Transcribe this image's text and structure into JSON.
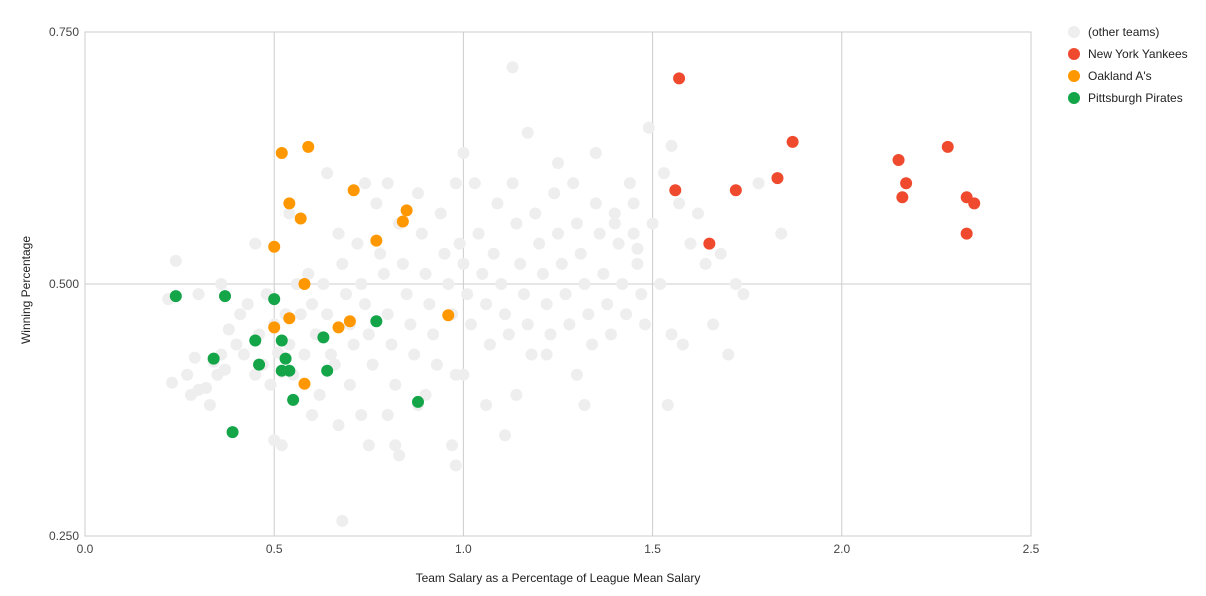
{
  "chart_data": {
    "type": "scatter",
    "title": "",
    "xlabel": "Team Salary as a Percentage of League Mean Salary",
    "ylabel": "Winning Percentage",
    "xlim": [
      0,
      2.5
    ],
    "ylim": [
      0.25,
      0.75
    ],
    "xticks": [
      "0.0",
      "0.5",
      "1.0",
      "1.5",
      "2.0",
      "2.5"
    ],
    "yticks": [
      "0.250",
      "0.500",
      "0.750"
    ],
    "grid": true,
    "legend_position": "right",
    "series": [
      {
        "name": "(other teams)",
        "color": "#eeeeee",
        "points": [
          [
            0.22,
            0.485
          ],
          [
            0.24,
            0.523
          ],
          [
            0.23,
            0.402
          ],
          [
            0.27,
            0.41
          ],
          [
            0.28,
            0.39
          ],
          [
            0.29,
            0.427
          ],
          [
            0.3,
            0.395
          ],
          [
            0.32,
            0.397
          ],
          [
            0.33,
            0.38
          ],
          [
            0.34,
            0.423
          ],
          [
            0.35,
            0.41
          ],
          [
            0.36,
            0.43
          ],
          [
            0.37,
            0.415
          ],
          [
            0.38,
            0.455
          ],
          [
            0.4,
            0.44
          ],
          [
            0.41,
            0.47
          ],
          [
            0.42,
            0.43
          ],
          [
            0.43,
            0.48
          ],
          [
            0.45,
            0.41
          ],
          [
            0.46,
            0.45
          ],
          [
            0.47,
            0.42
          ],
          [
            0.48,
            0.49
          ],
          [
            0.49,
            0.4
          ],
          [
            0.5,
            0.46
          ],
          [
            0.51,
            0.432
          ],
          [
            0.52,
            0.413
          ],
          [
            0.53,
            0.47
          ],
          [
            0.54,
            0.44
          ],
          [
            0.55,
            0.41
          ],
          [
            0.56,
            0.5
          ],
          [
            0.57,
            0.47
          ],
          [
            0.58,
            0.43
          ],
          [
            0.59,
            0.51
          ],
          [
            0.6,
            0.48
          ],
          [
            0.61,
            0.45
          ],
          [
            0.62,
            0.39
          ],
          [
            0.63,
            0.5
          ],
          [
            0.64,
            0.47
          ],
          [
            0.65,
            0.43
          ],
          [
            0.66,
            0.42
          ],
          [
            0.67,
            0.55
          ],
          [
            0.68,
            0.52
          ],
          [
            0.69,
            0.49
          ],
          [
            0.7,
            0.46
          ],
          [
            0.71,
            0.44
          ],
          [
            0.72,
            0.54
          ],
          [
            0.73,
            0.5
          ],
          [
            0.74,
            0.48
          ],
          [
            0.75,
            0.45
          ],
          [
            0.76,
            0.42
          ],
          [
            0.77,
            0.58
          ],
          [
            0.78,
            0.53
          ],
          [
            0.79,
            0.51
          ],
          [
            0.8,
            0.47
          ],
          [
            0.81,
            0.44
          ],
          [
            0.82,
            0.4
          ],
          [
            0.83,
            0.56
          ],
          [
            0.84,
            0.52
          ],
          [
            0.85,
            0.49
          ],
          [
            0.86,
            0.46
          ],
          [
            0.87,
            0.43
          ],
          [
            0.88,
            0.59
          ],
          [
            0.89,
            0.55
          ],
          [
            0.9,
            0.51
          ],
          [
            0.91,
            0.48
          ],
          [
            0.92,
            0.45
          ],
          [
            0.93,
            0.42
          ],
          [
            0.94,
            0.57
          ],
          [
            0.95,
            0.53
          ],
          [
            0.96,
            0.5
          ],
          [
            0.97,
            0.47
          ],
          [
            0.98,
            0.41
          ],
          [
            0.99,
            0.54
          ],
          [
            1.0,
            0.52
          ],
          [
            1.01,
            0.49
          ],
          [
            1.02,
            0.46
          ],
          [
            1.03,
            0.6
          ],
          [
            1.04,
            0.55
          ],
          [
            1.05,
            0.51
          ],
          [
            1.06,
            0.48
          ],
          [
            1.07,
            0.44
          ],
          [
            1.08,
            0.53
          ],
          [
            1.09,
            0.58
          ],
          [
            1.1,
            0.5
          ],
          [
            1.11,
            0.47
          ],
          [
            1.12,
            0.45
          ],
          [
            1.13,
            0.6
          ],
          [
            1.14,
            0.56
          ],
          [
            1.15,
            0.52
          ],
          [
            1.16,
            0.49
          ],
          [
            1.17,
            0.46
          ],
          [
            1.18,
            0.43
          ],
          [
            1.19,
            0.57
          ],
          [
            1.2,
            0.54
          ],
          [
            1.21,
            0.51
          ],
          [
            1.22,
            0.48
          ],
          [
            1.23,
            0.45
          ],
          [
            1.24,
            0.59
          ],
          [
            1.25,
            0.55
          ],
          [
            1.26,
            0.52
          ],
          [
            1.27,
            0.49
          ],
          [
            1.28,
            0.46
          ],
          [
            1.29,
            0.6
          ],
          [
            1.3,
            0.56
          ],
          [
            1.31,
            0.53
          ],
          [
            1.32,
            0.5
          ],
          [
            1.33,
            0.47
          ],
          [
            1.34,
            0.44
          ],
          [
            1.35,
            0.58
          ],
          [
            1.36,
            0.55
          ],
          [
            1.37,
            0.51
          ],
          [
            1.38,
            0.48
          ],
          [
            1.39,
            0.45
          ],
          [
            1.4,
            0.57
          ],
          [
            1.41,
            0.54
          ],
          [
            1.42,
            0.5
          ],
          [
            1.43,
            0.47
          ],
          [
            1.44,
            0.6
          ],
          [
            1.45,
            0.55
          ],
          [
            1.46,
            0.52
          ],
          [
            1.47,
            0.49
          ],
          [
            1.48,
            0.46
          ],
          [
            1.5,
            0.56
          ],
          [
            1.52,
            0.5
          ],
          [
            1.53,
            0.61
          ],
          [
            1.55,
            0.45
          ],
          [
            1.57,
            0.58
          ],
          [
            1.58,
            0.44
          ],
          [
            1.6,
            0.54
          ],
          [
            1.62,
            0.57
          ],
          [
            1.64,
            0.52
          ],
          [
            1.66,
            0.46
          ],
          [
            1.68,
            0.53
          ],
          [
            1.7,
            0.43
          ],
          [
            1.72,
            0.5
          ],
          [
            1.74,
            0.49
          ],
          [
            1.78,
            0.6
          ],
          [
            1.84,
            0.55
          ],
          [
            0.5,
            0.345
          ],
          [
            0.52,
            0.34
          ],
          [
            0.6,
            0.37
          ],
          [
            0.67,
            0.36
          ],
          [
            0.7,
            0.4
          ],
          [
            0.73,
            0.37
          ],
          [
            0.75,
            0.34
          ],
          [
            0.8,
            0.37
          ],
          [
            0.82,
            0.34
          ],
          [
            0.83,
            0.33
          ],
          [
            0.88,
            0.38
          ],
          [
            0.9,
            0.39
          ],
          [
            0.97,
            0.34
          ],
          [
            0.98,
            0.32
          ],
          [
            1.0,
            0.41
          ],
          [
            1.06,
            0.38
          ],
          [
            1.11,
            0.35
          ],
          [
            1.14,
            0.39
          ],
          [
            1.22,
            0.43
          ],
          [
            1.3,
            0.41
          ],
          [
            1.32,
            0.38
          ],
          [
            1.54,
            0.38
          ],
          [
            1.13,
            0.715
          ],
          [
            1.17,
            0.65
          ],
          [
            1.49,
            0.655
          ],
          [
            1.55,
            0.637
          ],
          [
            1.45,
            0.58
          ],
          [
            1.35,
            0.63
          ],
          [
            1.25,
            0.62
          ],
          [
            1.0,
            0.63
          ],
          [
            0.98,
            0.6
          ],
          [
            0.8,
            0.6
          ],
          [
            0.74,
            0.6
          ],
          [
            0.64,
            0.61
          ],
          [
            0.54,
            0.57
          ],
          [
            0.45,
            0.54
          ],
          [
            0.36,
            0.5
          ],
          [
            0.3,
            0.49
          ],
          [
            0.68,
            0.265
          ],
          [
            1.4,
            0.56
          ],
          [
            1.46,
            0.535
          ]
        ]
      },
      {
        "name": "New York Yankees",
        "color": "#ef4a2e",
        "points": [
          [
            1.57,
            0.704
          ],
          [
            1.56,
            0.593
          ],
          [
            1.65,
            0.54
          ],
          [
            1.72,
            0.593
          ],
          [
            1.83,
            0.605
          ],
          [
            1.87,
            0.641
          ],
          [
            2.15,
            0.623
          ],
          [
            2.17,
            0.6
          ],
          [
            2.16,
            0.586
          ],
          [
            2.28,
            0.636
          ],
          [
            2.33,
            0.586
          ],
          [
            2.35,
            0.58
          ],
          [
            2.33,
            0.55
          ]
        ]
      },
      {
        "name": "Oakland A's",
        "color": "#ff9800",
        "points": [
          [
            0.52,
            0.63
          ],
          [
            0.59,
            0.636
          ],
          [
            0.54,
            0.58
          ],
          [
            0.57,
            0.565
          ],
          [
            0.5,
            0.537
          ],
          [
            0.71,
            0.593
          ],
          [
            0.84,
            0.562
          ],
          [
            0.85,
            0.573
          ],
          [
            0.77,
            0.543
          ],
          [
            0.58,
            0.5
          ],
          [
            0.54,
            0.466
          ],
          [
            0.5,
            0.457
          ],
          [
            0.67,
            0.457
          ],
          [
            0.7,
            0.463
          ],
          [
            0.96,
            0.469
          ],
          [
            0.58,
            0.401
          ]
        ]
      },
      {
        "name": "Pittsburgh Pirates",
        "color": "#13a548",
        "points": [
          [
            0.24,
            0.488
          ],
          [
            0.37,
            0.488
          ],
          [
            0.5,
            0.485
          ],
          [
            0.45,
            0.444
          ],
          [
            0.52,
            0.444
          ],
          [
            0.34,
            0.426
          ],
          [
            0.46,
            0.42
          ],
          [
            0.53,
            0.426
          ],
          [
            0.52,
            0.414
          ],
          [
            0.54,
            0.414
          ],
          [
            0.63,
            0.447
          ],
          [
            0.64,
            0.414
          ],
          [
            0.77,
            0.463
          ],
          [
            0.55,
            0.385
          ],
          [
            0.88,
            0.383
          ],
          [
            0.39,
            0.353
          ]
        ]
      }
    ]
  }
}
